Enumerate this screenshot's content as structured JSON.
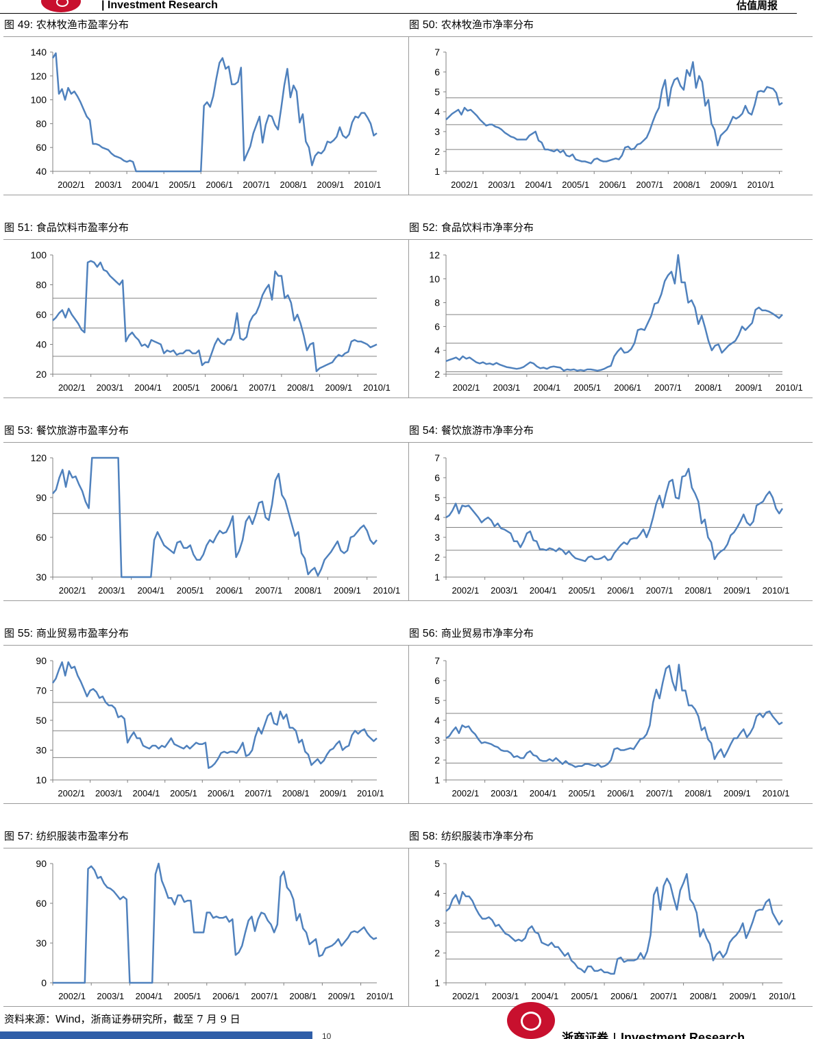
{
  "header": {
    "company": "| Investment Research",
    "report": "估值周报"
  },
  "colors": {
    "line": "#4f81bd",
    "grid": "#808080",
    "axis": "#808080"
  },
  "source": {
    "prefix": "资料来源：",
    "wind": "Wind",
    "suffix": "，浙商证券研究所，截至 7 月 9 日"
  },
  "footer": {
    "brand_cn": "浙商证券",
    "brand_sep": "|",
    "brand_en": "Investment Research",
    "page": "10"
  },
  "chart_data": [
    {
      "id": "fig49",
      "fig": "图",
      "num": "49:",
      "title": "农林牧渔市盈率分布",
      "type": "line",
      "x_labels": [
        "2002/1",
        "2003/1",
        "2004/1",
        "2005/1",
        "2006/1",
        "2007/1",
        "2008/1",
        "2009/1",
        "2010/1"
      ],
      "ylim": [
        40,
        140
      ],
      "yticks": [
        40,
        60,
        80,
        100,
        120,
        140
      ],
      "hlines": [],
      "gaps": [
        [
          24,
          48
        ]
      ],
      "values": [
        135,
        139,
        105,
        109,
        100,
        110,
        105,
        107,
        103,
        98,
        92,
        86,
        83,
        63,
        63,
        62,
        60,
        59,
        58,
        55,
        53,
        52,
        51,
        49,
        48,
        49,
        48,
        40,
        40,
        40,
        40,
        40,
        40,
        40,
        40,
        40,
        40,
        40,
        40,
        40,
        40,
        40,
        40,
        40,
        40,
        40,
        40,
        40,
        40,
        95,
        98,
        94,
        103,
        118,
        131,
        135,
        126,
        128,
        113,
        113,
        115,
        127,
        49,
        55,
        61,
        72,
        79,
        86,
        64,
        79,
        87,
        86,
        79,
        75,
        93,
        112,
        126,
        102,
        112,
        107,
        81,
        88,
        65,
        60,
        45,
        53,
        56,
        55,
        58,
        65,
        64,
        66,
        69,
        77,
        70,
        68,
        71,
        81,
        86,
        85,
        89,
        89,
        85,
        80,
        70,
        72
      ]
    },
    {
      "id": "fig50",
      "fig": "图",
      "num": "50:",
      "title": "农林牧渔市净率分布",
      "type": "line",
      "x_labels": [
        "2002/1",
        "2003/1",
        "2004/1",
        "2005/1",
        "2006/1",
        "2007/1",
        "2008/1",
        "2009/1",
        "2010/1"
      ],
      "ylim": [
        1,
        7
      ],
      "yticks": [
        1,
        2,
        3,
        4,
        5,
        6,
        7
      ],
      "hlines": [
        2.1,
        3.35,
        4.7
      ],
      "gaps": [],
      "values": [
        3.6,
        3.75,
        3.9,
        4.0,
        4.1,
        3.85,
        4.2,
        4.05,
        4.1,
        3.95,
        3.8,
        3.6,
        3.45,
        3.3,
        3.35,
        3.35,
        3.25,
        3.2,
        3.1,
        2.95,
        2.85,
        2.75,
        2.7,
        2.6,
        2.6,
        2.6,
        2.6,
        2.8,
        2.9,
        3.0,
        2.55,
        2.45,
        2.1,
        2.1,
        2.05,
        2.0,
        2.1,
        1.95,
        2.05,
        1.8,
        1.75,
        1.85,
        1.6,
        1.55,
        1.5,
        1.5,
        1.45,
        1.4,
        1.6,
        1.65,
        1.55,
        1.5,
        1.5,
        1.55,
        1.6,
        1.65,
        1.6,
        1.8,
        2.2,
        2.25,
        2.1,
        2.15,
        2.35,
        2.4,
        2.55,
        2.7,
        3.05,
        3.5,
        3.9,
        4.2,
        5.1,
        5.6,
        4.3,
        5.2,
        5.6,
        5.7,
        5.3,
        5.1,
        6.1,
        5.8,
        6.5,
        5.2,
        5.8,
        5.5,
        4.3,
        4.6,
        3.4,
        3.1,
        2.3,
        2.8,
        2.95,
        3.1,
        3.4,
        3.75,
        3.65,
        3.75,
        3.9,
        4.3,
        3.95,
        3.85,
        4.35,
        5.0,
        5.05,
        5.0,
        5.25,
        5.2,
        5.15,
        4.95,
        4.35,
        4.45
      ]
    },
    {
      "id": "fig51",
      "fig": "图",
      "num": "51:",
      "title": "食品饮料市盈率分布",
      "type": "line",
      "x_labels": [
        "2002/1",
        "2003/1",
        "2004/1",
        "2005/1",
        "2006/1",
        "2007/1",
        "2008/1",
        "2009/1",
        "2010/1"
      ],
      "ylim": [
        20,
        100
      ],
      "yticks": [
        20,
        40,
        60,
        80,
        100
      ],
      "hlines": [
        32,
        51,
        71
      ],
      "gaps": [],
      "values": [
        56,
        58,
        61,
        63,
        58,
        64,
        60,
        57,
        54,
        50,
        48,
        95,
        96,
        95,
        92,
        95,
        90,
        89,
        86,
        84,
        82,
        80,
        83,
        42,
        46,
        48,
        45,
        43,
        39,
        40,
        38,
        43,
        42,
        41,
        40,
        34,
        36,
        35,
        36,
        33,
        34,
        34,
        36,
        36,
        34,
        34,
        36,
        26,
        28,
        28,
        34,
        40,
        44,
        41,
        40,
        43,
        43,
        48,
        61,
        44,
        43,
        45,
        55,
        59,
        61,
        66,
        73,
        77,
        80,
        70,
        89,
        86,
        86,
        71,
        73,
        68,
        56,
        60,
        54,
        46,
        36,
        40,
        41,
        22,
        24,
        25,
        26,
        27,
        28,
        31,
        33,
        32,
        34,
        35,
        42,
        43,
        42,
        42,
        41,
        40,
        38,
        39,
        40
      ]
    },
    {
      "id": "fig52",
      "fig": "图",
      "num": "52:",
      "title": "食品饮料市净率分布",
      "type": "line",
      "x_labels": [
        "2002/1",
        "2003/1",
        "2004/1",
        "2005/1",
        "2006/1",
        "2007/1",
        "2008/1",
        "2009/1",
        "2010/1"
      ],
      "ylim": [
        2,
        12
      ],
      "yticks": [
        2,
        4,
        6,
        8,
        10,
        12
      ],
      "hlines": [
        2.2,
        4.6,
        7.0
      ],
      "gaps": [],
      "values": [
        3.1,
        3.2,
        3.3,
        3.4,
        3.2,
        3.5,
        3.3,
        3.4,
        3.2,
        3.0,
        2.9,
        3.0,
        2.85,
        2.9,
        2.8,
        2.95,
        2.8,
        2.7,
        2.6,
        2.55,
        2.5,
        2.45,
        2.5,
        2.6,
        2.8,
        3.0,
        2.9,
        2.65,
        2.5,
        2.55,
        2.45,
        2.6,
        2.65,
        2.6,
        2.55,
        2.3,
        2.4,
        2.35,
        2.4,
        2.3,
        2.35,
        2.3,
        2.4,
        2.4,
        2.35,
        2.3,
        2.35,
        2.45,
        2.6,
        2.7,
        3.5,
        3.9,
        4.2,
        3.8,
        3.85,
        4.1,
        4.6,
        5.7,
        5.8,
        5.7,
        6.3,
        6.9,
        7.9,
        8.0,
        8.7,
        9.8,
        10.3,
        10.6,
        9.6,
        12.0,
        9.7,
        9.7,
        8.0,
        8.2,
        7.6,
        6.2,
        6.9,
        5.9,
        4.8,
        4.0,
        4.4,
        4.5,
        3.8,
        4.1,
        4.4,
        4.6,
        4.8,
        5.3,
        6.0,
        5.7,
        6.0,
        6.3,
        7.4,
        7.6,
        7.35,
        7.35,
        7.25,
        7.1,
        6.9,
        6.7,
        7.0
      ]
    },
    {
      "id": "fig53",
      "fig": "图",
      "num": "53:",
      "title": "餐饮旅游市盈率分布",
      "type": "line",
      "x_labels": [
        "2002/1",
        "2003/1",
        "2004/1",
        "2005/1",
        "2006/1",
        "2007/1",
        "2008/1",
        "2009/1",
        "2010/1"
      ],
      "ylim": [
        30,
        120
      ],
      "yticks": [
        30,
        60,
        90,
        120
      ],
      "hlines": [
        78
      ],
      "gaps": [
        [
          11,
          20
        ],
        [
          20,
          30
        ]
      ],
      "values": [
        93,
        96,
        105,
        111,
        98,
        110,
        105,
        106,
        100,
        95,
        87,
        82,
        120,
        120,
        120,
        120,
        120,
        120,
        120,
        120,
        120,
        30,
        30,
        30,
        30,
        30,
        30,
        30,
        30,
        30,
        30,
        58,
        64,
        59,
        54,
        52,
        50,
        48,
        56,
        57,
        52,
        52,
        54,
        47,
        43,
        43,
        47,
        54,
        58,
        56,
        61,
        65,
        63,
        64,
        69,
        76,
        45,
        50,
        58,
        72,
        76,
        70,
        77,
        86,
        87,
        75,
        73,
        85,
        103,
        108,
        92,
        88,
        79,
        70,
        61,
        64,
        48,
        44,
        32,
        35,
        37,
        31,
        36,
        43,
        46,
        49,
        53,
        57,
        50,
        48,
        50,
        60,
        61,
        64,
        67,
        69,
        65,
        58,
        55,
        58
      ]
    },
    {
      "id": "fig54",
      "fig": "图",
      "num": "54:",
      "title": "餐饮旅游市净率分布",
      "type": "line",
      "x_labels": [
        "2002/1",
        "2003/1",
        "2004/1",
        "2005/1",
        "2006/1",
        "2007/1",
        "2008/1",
        "2009/1",
        "2010/1"
      ],
      "ylim": [
        1,
        7
      ],
      "yticks": [
        1,
        2,
        3,
        4,
        5,
        6,
        7
      ],
      "hlines": [
        2.35,
        3.5,
        4.7
      ],
      "gaps": [],
      "values": [
        4.0,
        4.1,
        4.35,
        4.7,
        4.2,
        4.6,
        4.55,
        4.6,
        4.4,
        4.2,
        4.0,
        3.75,
        3.9,
        4.0,
        3.85,
        3.55,
        3.7,
        3.45,
        3.4,
        3.3,
        3.2,
        2.8,
        2.8,
        2.5,
        2.8,
        3.2,
        3.3,
        2.85,
        2.8,
        2.4,
        2.4,
        2.35,
        2.45,
        2.4,
        2.3,
        2.45,
        2.35,
        2.15,
        2.3,
        2.1,
        1.95,
        1.9,
        1.85,
        1.8,
        2.0,
        2.05,
        1.9,
        1.9,
        1.95,
        2.05,
        1.85,
        1.9,
        2.2,
        2.4,
        2.6,
        2.75,
        2.65,
        2.9,
        2.95,
        2.95,
        3.15,
        3.4,
        3.0,
        3.4,
        4.0,
        4.7,
        5.1,
        4.5,
        5.2,
        5.8,
        5.9,
        5.0,
        4.95,
        6.05,
        6.1,
        6.45,
        5.5,
        5.2,
        4.8,
        3.7,
        3.9,
        3.0,
        2.75,
        1.9,
        2.15,
        2.3,
        2.4,
        2.65,
        3.1,
        3.25,
        3.5,
        3.8,
        4.15,
        3.75,
        3.6,
        3.8,
        4.6,
        4.7,
        4.8,
        5.1,
        5.3,
        5.0,
        4.45,
        4.2,
        4.45
      ]
    },
    {
      "id": "fig55",
      "fig": "图",
      "num": "55:",
      "title": "商业贸易市盈率分布",
      "type": "line",
      "x_labels": [
        "2002/1",
        "2003/1",
        "2004/1",
        "2005/1",
        "2006/1",
        "2007/1",
        "2008/1",
        "2009/1",
        "2010/1"
      ],
      "ylim": [
        10,
        90
      ],
      "yticks": [
        10,
        30,
        50,
        70,
        90
      ],
      "hlines": [
        25,
        43,
        62
      ],
      "gaps": [],
      "values": [
        75,
        78,
        84,
        89,
        80,
        89,
        85,
        86,
        80,
        76,
        71,
        66,
        70,
        71,
        69,
        65,
        66,
        62,
        60,
        60,
        58,
        52,
        53,
        51,
        35,
        39,
        42,
        38,
        38,
        33,
        32,
        31,
        33,
        33,
        31,
        33,
        32,
        35,
        38,
        34,
        33,
        32,
        31,
        33,
        31,
        33,
        35,
        34,
        34,
        35,
        18,
        19,
        21,
        24,
        28,
        29,
        28,
        29,
        29,
        28,
        31,
        35,
        26,
        27,
        30,
        39,
        45,
        41,
        47,
        53,
        55,
        48,
        47,
        56,
        51,
        54,
        45,
        45,
        43,
        35,
        37,
        29,
        27,
        20,
        22,
        24,
        21,
        23,
        27,
        30,
        31,
        34,
        36,
        30,
        32,
        33,
        40,
        43,
        41,
        43,
        44,
        40,
        38,
        36,
        38
      ]
    },
    {
      "id": "fig56",
      "fig": "图",
      "num": "56:",
      "title": "商业贸易市净率分布",
      "type": "line",
      "x_labels": [
        "2002/1",
        "2003/1",
        "2004/1",
        "2005/1",
        "2006/1",
        "2007/1",
        "2008/1",
        "2009/1",
        "2010/1"
      ],
      "ylim": [
        1,
        7
      ],
      "yticks": [
        1,
        2,
        3,
        4,
        5,
        6,
        7
      ],
      "hlines": [
        1.85,
        3.1,
        4.35
      ],
      "gaps": [],
      "values": [
        3.1,
        3.2,
        3.45,
        3.65,
        3.35,
        3.75,
        3.65,
        3.7,
        3.45,
        3.3,
        3.05,
        2.85,
        2.9,
        2.85,
        2.8,
        2.7,
        2.65,
        2.5,
        2.45,
        2.45,
        2.35,
        2.15,
        2.2,
        2.1,
        2.1,
        2.35,
        2.45,
        2.25,
        2.2,
        2.0,
        1.95,
        1.95,
        2.05,
        1.95,
        2.1,
        1.95,
        1.8,
        1.95,
        1.8,
        1.75,
        1.65,
        1.7,
        1.7,
        1.8,
        1.8,
        1.75,
        1.7,
        1.8,
        1.65,
        1.7,
        1.8,
        2.0,
        2.55,
        2.6,
        2.5,
        2.5,
        2.55,
        2.6,
        2.55,
        2.8,
        3.05,
        3.1,
        3.3,
        3.75,
        4.9,
        5.55,
        5.1,
        5.9,
        6.6,
        6.75,
        5.95,
        5.5,
        6.8,
        5.5,
        5.5,
        4.75,
        4.75,
        4.55,
        4.2,
        3.5,
        3.65,
        3.05,
        2.85,
        2.05,
        2.35,
        2.55,
        2.15,
        2.45,
        2.8,
        3.1,
        3.1,
        3.35,
        3.55,
        3.15,
        3.35,
        3.65,
        4.2,
        4.35,
        4.15,
        4.4,
        4.45,
        4.2,
        4.0,
        3.8,
        3.9
      ]
    },
    {
      "id": "fig57",
      "fig": "图",
      "num": "57:",
      "title": "纺织服装市盈率分布",
      "type": "line",
      "x_labels": [
        "2002/1",
        "2003/1",
        "2004/1",
        "2005/1",
        "2006/1",
        "2007/1",
        "2008/1",
        "2009/1",
        "2010/1"
      ],
      "ylim": [
        0,
        90
      ],
      "yticks": [
        0,
        30,
        60,
        90
      ],
      "hlines": [],
      "gaps": [
        [
          0,
          10
        ],
        [
          23,
          31
        ]
      ],
      "values": [
        0,
        0,
        0,
        0,
        0,
        0,
        0,
        0,
        0,
        0,
        0,
        86,
        88,
        85,
        79,
        80,
        75,
        72,
        71,
        69,
        66,
        63,
        65,
        63,
        0,
        0,
        0,
        0,
        0,
        0,
        0,
        0,
        82,
        90,
        77,
        71,
        64,
        64,
        59,
        66,
        66,
        61,
        62,
        62,
        38,
        38,
        38,
        38,
        53,
        53,
        49,
        50,
        49,
        49,
        50,
        46,
        48,
        21,
        23,
        28,
        38,
        47,
        50,
        39,
        48,
        53,
        52,
        47,
        44,
        38,
        44,
        80,
        84,
        72,
        69,
        63,
        47,
        52,
        41,
        38,
        29,
        31,
        33,
        20,
        21,
        26,
        27,
        28,
        30,
        33,
        28,
        31,
        34,
        38,
        39,
        38,
        40,
        42,
        38,
        35,
        33,
        34
      ]
    },
    {
      "id": "fig58",
      "fig": "图",
      "num": "58:",
      "title": "纺织服装市净率分布",
      "type": "line",
      "x_labels": [
        "2002/1",
        "2003/1",
        "2004/1",
        "2005/1",
        "2006/1",
        "2007/1",
        "2008/1",
        "2009/1",
        "2010/1"
      ],
      "ylim": [
        1,
        5
      ],
      "yticks": [
        1,
        2,
        3,
        4,
        5
      ],
      "hlines": [
        1.8,
        2.7,
        3.6
      ],
      "gaps": [],
      "values": [
        3.4,
        3.5,
        3.8,
        3.95,
        3.65,
        4.05,
        3.9,
        3.9,
        3.75,
        3.5,
        3.3,
        3.15,
        3.15,
        3.2,
        3.1,
        2.9,
        2.95,
        2.8,
        2.65,
        2.6,
        2.5,
        2.4,
        2.45,
        2.4,
        2.5,
        2.8,
        2.9,
        2.7,
        2.65,
        2.35,
        2.3,
        2.25,
        2.35,
        2.2,
        2.2,
        2.05,
        1.9,
        2.0,
        1.75,
        1.65,
        1.5,
        1.45,
        1.35,
        1.55,
        1.55,
        1.4,
        1.4,
        1.45,
        1.35,
        1.35,
        1.3,
        1.3,
        1.8,
        1.85,
        1.7,
        1.75,
        1.75,
        1.75,
        1.8,
        2.0,
        1.8,
        2.05,
        2.6,
        3.95,
        4.2,
        3.45,
        4.25,
        4.5,
        4.3,
        3.85,
        3.45,
        4.1,
        4.35,
        4.65,
        3.8,
        3.65,
        3.35,
        2.55,
        2.8,
        2.5,
        2.3,
        1.75,
        1.95,
        2.05,
        1.85,
        2.0,
        2.35,
        2.5,
        2.6,
        2.75,
        3.0,
        2.5,
        2.75,
        3.05,
        3.4,
        3.45,
        3.45,
        3.7,
        3.8,
        3.35,
        3.15,
        2.95,
        3.1
      ]
    }
  ]
}
